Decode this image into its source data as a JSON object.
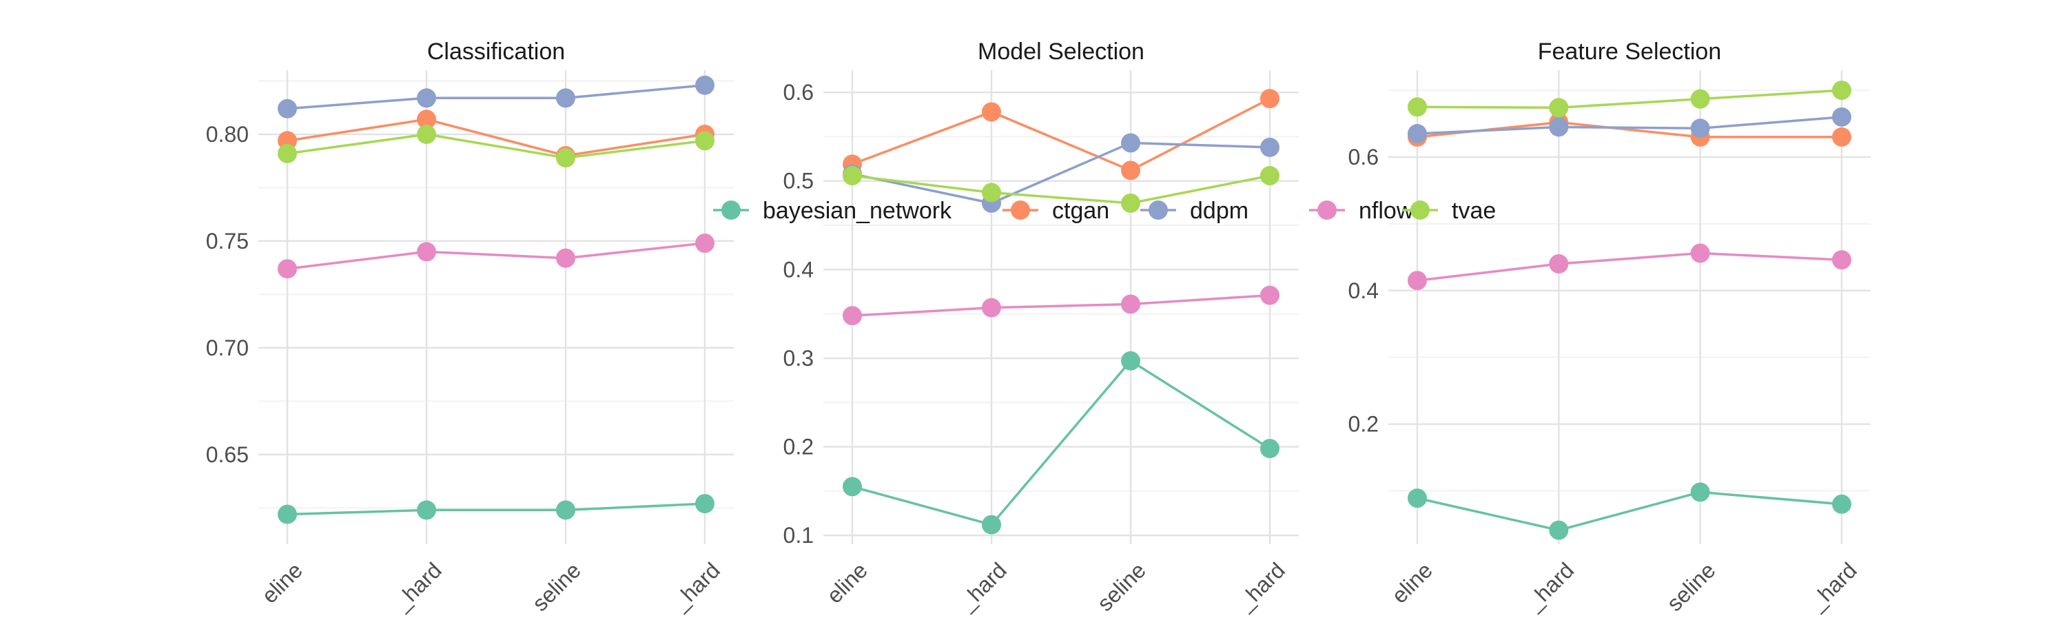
{
  "chart_data": [
    {
      "type": "line",
      "title": "Classification",
      "xlabel": "",
      "ylabel": "",
      "categories": [
        "baseline",
        "baseline_hard",
        "baseline",
        "baseline_hard"
      ],
      "x_tick_labels_visible": [
        "eline",
        "_hard",
        "seline",
        "_hard"
      ],
      "yticks": [
        0.65,
        0.7,
        0.75,
        0.8
      ],
      "ylim": [
        0.608,
        0.83
      ],
      "grid": true,
      "series": [
        {
          "name": "bayesian_network",
          "values": [
            0.622,
            0.624,
            0.624,
            0.627
          ]
        },
        {
          "name": "ctgan",
          "values": [
            0.797,
            0.807,
            0.79,
            0.8
          ]
        },
        {
          "name": "ddpm",
          "values": [
            0.812,
            0.817,
            0.817,
            0.823
          ]
        },
        {
          "name": "nflow",
          "values": [
            0.737,
            0.745,
            0.742,
            0.749
          ]
        },
        {
          "name": "tvae",
          "values": [
            0.791,
            0.8,
            0.789,
            0.797
          ]
        }
      ]
    },
    {
      "type": "line",
      "title": "Model Selection",
      "xlabel": "",
      "ylabel": "",
      "categories": [
        "baseline",
        "baseline_hard",
        "baseline",
        "baseline_hard"
      ],
      "x_tick_labels_visible": [
        "eline",
        "_hard",
        "seline",
        "_hard"
      ],
      "yticks": [
        0.1,
        0.2,
        0.3,
        0.4,
        0.5,
        0.6
      ],
      "ylim": [
        0.09,
        0.625
      ],
      "grid": true,
      "series": [
        {
          "name": "bayesian_network",
          "values": [
            0.155,
            0.112,
            0.297,
            0.198
          ]
        },
        {
          "name": "ctgan",
          "values": [
            0.519,
            0.578,
            0.512,
            0.593
          ]
        },
        {
          "name": "ddpm",
          "values": [
            0.508,
            0.475,
            0.543,
            0.538
          ]
        },
        {
          "name": "nflow",
          "values": [
            0.348,
            0.357,
            0.361,
            0.371
          ]
        },
        {
          "name": "tvae",
          "values": [
            0.506,
            0.487,
            0.475,
            0.506
          ]
        }
      ]
    },
    {
      "type": "line",
      "title": "Feature Selection",
      "xlabel": "",
      "ylabel": "",
      "categories": [
        "baseline",
        "baseline_hard",
        "baseline",
        "baseline_hard"
      ],
      "x_tick_labels_visible": [
        "eline",
        "_hard",
        "seline",
        "_hard"
      ],
      "yticks": [
        0.2,
        0.4,
        0.6
      ],
      "ylim": [
        0.02,
        0.73
      ],
      "grid": true,
      "series": [
        {
          "name": "bayesian_network",
          "values": [
            0.089,
            0.041,
            0.098,
            0.08
          ]
        },
        {
          "name": "ctgan",
          "values": [
            0.63,
            0.652,
            0.63,
            0.63
          ]
        },
        {
          "name": "ddpm",
          "values": [
            0.635,
            0.645,
            0.643,
            0.66
          ]
        },
        {
          "name": "nflow",
          "values": [
            0.415,
            0.44,
            0.456,
            0.446
          ]
        },
        {
          "name": "tvae",
          "values": [
            0.675,
            0.674,
            0.687,
            0.7
          ]
        }
      ]
    }
  ],
  "legend": {
    "placement": "center overlay",
    "items": [
      {
        "label": "bayesian_network",
        "color": "#66c2a5"
      },
      {
        "label": "ctgan",
        "color": "#fc8d62"
      },
      {
        "label": "ddpm",
        "color": "#8da0cb"
      },
      {
        "label": "nflow",
        "color": "#e78ac3"
      },
      {
        "label": "tvae",
        "color": "#a6d854"
      }
    ]
  },
  "colors": {
    "bayesian_network": "#66c2a5",
    "ctgan": "#fc8d62",
    "ddpm": "#8da0cb",
    "nflow": "#e78ac3",
    "tvae": "#a6d854",
    "grid_major": "#e3e3e3",
    "grid_minor": "#f2f2f2"
  }
}
